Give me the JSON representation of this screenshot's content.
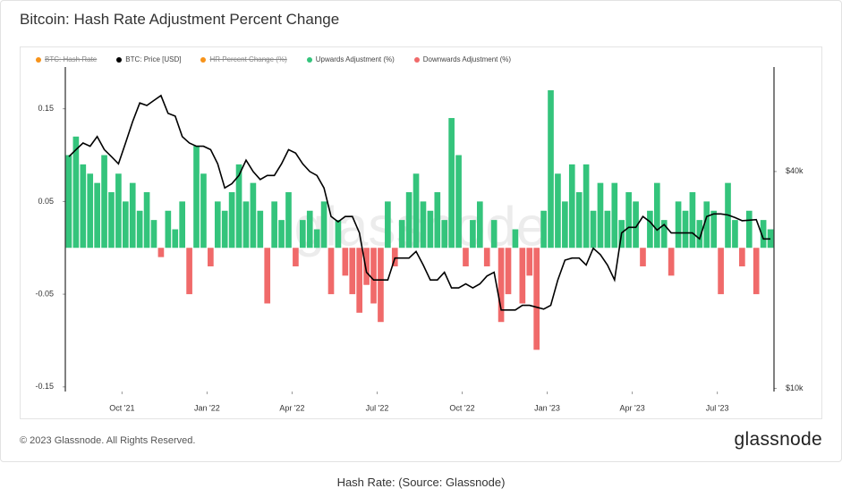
{
  "chart_data": {
    "type": "bar",
    "title": "Bitcoin: Hash Rate Adjustment Percent Change",
    "watermark": "glassnode",
    "footer": "© 2023 Glassnode. All Rights Reserved.",
    "logo": "glassnode",
    "caption": "Hash Rate: (Source: Glassnode)",
    "x": [
      "2021-08",
      "2021-08",
      "2021-08",
      "2021-08",
      "2021-09",
      "2021-09",
      "2021-09",
      "2021-09",
      "2021-10",
      "2021-10",
      "2021-10",
      "2021-10",
      "2021-11",
      "2021-11",
      "2021-11",
      "2021-11",
      "2021-12",
      "2021-12",
      "2021-12",
      "2021-12",
      "2022-01",
      "2022-01",
      "2022-01",
      "2022-01",
      "2022-02",
      "2022-02",
      "2022-02",
      "2022-02",
      "2022-03",
      "2022-03",
      "2022-03",
      "2022-03",
      "2022-04",
      "2022-04",
      "2022-04",
      "2022-04",
      "2022-05",
      "2022-05",
      "2022-05",
      "2022-05",
      "2022-06",
      "2022-06",
      "2022-06",
      "2022-06",
      "2022-07",
      "2022-07",
      "2022-07",
      "2022-07",
      "2022-08",
      "2022-08",
      "2022-08",
      "2022-08",
      "2022-09",
      "2022-09",
      "2022-09",
      "2022-09",
      "2022-10",
      "2022-10",
      "2022-10",
      "2022-10",
      "2022-11",
      "2022-11",
      "2022-11",
      "2022-11",
      "2022-12",
      "2022-12",
      "2022-12",
      "2022-12",
      "2023-01",
      "2023-01",
      "2023-01",
      "2023-01",
      "2023-02",
      "2023-02",
      "2023-02",
      "2023-02",
      "2023-03",
      "2023-03",
      "2023-03",
      "2023-03",
      "2023-04",
      "2023-04",
      "2023-04",
      "2023-04",
      "2023-05",
      "2023-05",
      "2023-05",
      "2023-05",
      "2023-06",
      "2023-06",
      "2023-06",
      "2023-06",
      "2023-07",
      "2023-07",
      "2023-07",
      "2023-07",
      "2023-08",
      "2023-08",
      "2023-08",
      "2023-08"
    ],
    "xticks": [
      {
        "value": "2021-10",
        "label": "Oct '21"
      },
      {
        "value": "2022-01",
        "label": "Jan '22"
      },
      {
        "value": "2022-04",
        "label": "Apr '22"
      },
      {
        "value": "2022-07",
        "label": "Jul '22"
      },
      {
        "value": "2022-10",
        "label": "Oct '22"
      },
      {
        "value": "2023-01",
        "label": "Jan '23"
      },
      {
        "value": "2023-04",
        "label": "Apr '23"
      },
      {
        "value": "2023-07",
        "label": "Jul '23"
      }
    ],
    "ylim": [
      -0.155,
      0.195
    ],
    "yticks": [
      0.15,
      0.05,
      -0.05,
      -0.15
    ],
    "y2lim": [
      9800,
      78000
    ],
    "y2_log_scale": true,
    "y2ticks": [
      {
        "value": 40000,
        "label": "$40k"
      },
      {
        "value": 10000,
        "label": "$10k"
      }
    ],
    "grid": false,
    "legend": "top",
    "series": [
      {
        "name": "BTC: Hash Rate",
        "color": "#f7931a",
        "hidden": true
      },
      {
        "name": "BTC: Price [USD]",
        "color": "#000000",
        "type": "line",
        "axis": "y2",
        "values": [
          44000,
          46000,
          48000,
          47000,
          50000,
          46000,
          44000,
          42000,
          48000,
          55000,
          62000,
          61000,
          63000,
          65000,
          58000,
          57000,
          50000,
          48000,
          47000,
          47000,
          46000,
          42000,
          36000,
          37000,
          39000,
          43000,
          40000,
          38000,
          39000,
          39000,
          42000,
          46000,
          45000,
          42000,
          40000,
          39000,
          36000,
          30000,
          29000,
          30000,
          30000,
          27000,
          21000,
          20000,
          20000,
          20000,
          23000,
          23000,
          23000,
          24000,
          22000,
          20000,
          20000,
          21000,
          19000,
          19000,
          19500,
          19000,
          19500,
          20500,
          21000,
          16500,
          16500,
          16500,
          17000,
          17000,
          16800,
          16600,
          17000,
          20000,
          22700,
          23000,
          23000,
          22000,
          24500,
          23500,
          22000,
          20000,
          27000,
          28000,
          28000,
          30000,
          29000,
          27500,
          28500,
          27000,
          27000,
          27000,
          27000,
          26000,
          30000,
          30500,
          30500,
          30300,
          29800,
          29200,
          29300,
          29400,
          26000,
          26000
        ]
      },
      {
        "name": "HR Percent Change (%)",
        "color": "#f7931a",
        "hidden": true
      },
      {
        "name": "Upwards Adjustment (%)",
        "color": "#34c47c",
        "type": "bar",
        "values": [
          0.1,
          0.12,
          0.09,
          0.08,
          0.07,
          0.1,
          0.06,
          0.08,
          0.05,
          0.07,
          0.04,
          0.06,
          0.03,
          null,
          0.04,
          0.02,
          0.05,
          null,
          0.11,
          0.08,
          null,
          0.05,
          0.04,
          0.06,
          0.09,
          0.05,
          0.07,
          0.04,
          null,
          0.05,
          0.03,
          0.06,
          null,
          0.03,
          0.04,
          0.02,
          0.05,
          null,
          0.03,
          null,
          null,
          null,
          null,
          null,
          null,
          0.05,
          null,
          0.03,
          0.06,
          0.08,
          0.05,
          0.04,
          0.06,
          0.03,
          0.14,
          0.1,
          null,
          0.03,
          0.05,
          null,
          0.03,
          null,
          null,
          0.02,
          null,
          null,
          null,
          0.04,
          0.17,
          0.08,
          0.05,
          0.09,
          0.06,
          0.09,
          0.04,
          0.07,
          0.04,
          0.07,
          0.03,
          0.06,
          0.05,
          null,
          0.04,
          0.07,
          0.03,
          null,
          0.05,
          0.04,
          0.06,
          0.03,
          0.05,
          0.04,
          null,
          0.07,
          0.03,
          null,
          0.04,
          null,
          0.03,
          0.02
        ]
      },
      {
        "name": "Downwards Adjustment (%)",
        "color": "#f06a6a",
        "type": "bar",
        "values": [
          null,
          null,
          null,
          null,
          null,
          null,
          null,
          null,
          null,
          null,
          null,
          null,
          null,
          -0.01,
          null,
          null,
          null,
          -0.05,
          null,
          null,
          -0.02,
          null,
          null,
          null,
          null,
          null,
          null,
          null,
          -0.06,
          null,
          null,
          null,
          -0.02,
          null,
          null,
          null,
          null,
          -0.05,
          null,
          -0.03,
          -0.05,
          -0.07,
          -0.04,
          -0.06,
          -0.08,
          null,
          -0.02,
          null,
          null,
          null,
          null,
          null,
          null,
          null,
          null,
          null,
          -0.02,
          null,
          null,
          -0.02,
          null,
          -0.08,
          -0.05,
          null,
          -0.06,
          -0.03,
          -0.11,
          null,
          null,
          null,
          null,
          null,
          null,
          null,
          null,
          null,
          null,
          null,
          null,
          null,
          null,
          -0.02,
          null,
          null,
          null,
          -0.03,
          null,
          null,
          null,
          null,
          null,
          null,
          -0.05,
          null,
          null,
          -0.02,
          null,
          -0.05,
          null,
          null
        ]
      }
    ]
  }
}
